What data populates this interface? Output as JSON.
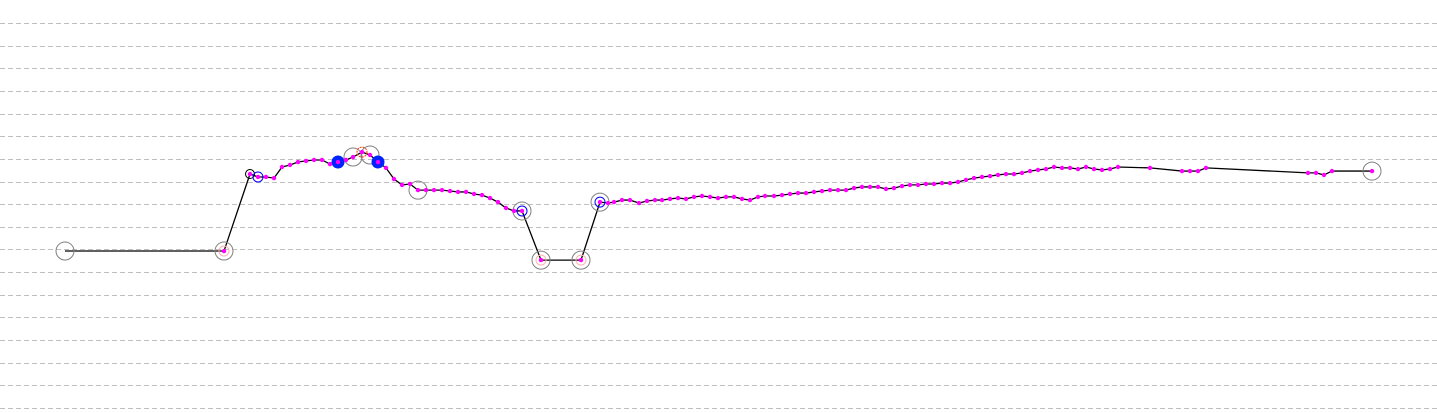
{
  "chart_data": {
    "type": "line",
    "title": "",
    "xlabel": "",
    "ylabel": "",
    "grid": true,
    "grid_style": "dashed horizontal",
    "xlim": [
      0,
      143.7
    ],
    "ylim": [
      0,
      17
    ],
    "colors": {
      "line": "#000000",
      "point": "#ff00ff",
      "grid": "#c0c0c0",
      "ring_gray": "#808080",
      "ring_blue": "#0000ff",
      "ring_red": "#ff3300",
      "ring_pink": "#ffb0b0",
      "ring_black": "#000000",
      "filled_blue": "#0022ff"
    },
    "series": [
      {
        "points": [
          [
            6.5,
            6.93
          ],
          [
            22.4,
            6.93
          ],
          [
            25.0,
            10.33
          ],
          [
            25.8,
            10.2
          ],
          [
            26.6,
            10.2
          ],
          [
            27.4,
            10.15
          ],
          [
            28.2,
            10.64
          ],
          [
            29.0,
            10.73
          ],
          [
            29.8,
            10.86
          ],
          [
            30.6,
            10.91
          ],
          [
            31.4,
            10.95
          ],
          [
            32.2,
            10.95
          ],
          [
            33.0,
            10.77
          ],
          [
            33.8,
            10.86
          ],
          [
            34.6,
            10.95
          ],
          [
            35.3,
            11.08
          ],
          [
            36.2,
            11.3
          ],
          [
            37.0,
            11.17
          ],
          [
            37.8,
            10.86
          ],
          [
            38.6,
            10.6
          ],
          [
            39.4,
            10.11
          ],
          [
            40.2,
            9.85
          ],
          [
            41.0,
            9.89
          ],
          [
            41.8,
            9.62
          ],
          [
            42.6,
            9.62
          ],
          [
            43.4,
            9.62
          ],
          [
            44.2,
            9.62
          ],
          [
            45.0,
            9.58
          ],
          [
            45.8,
            9.54
          ],
          [
            46.6,
            9.54
          ],
          [
            47.4,
            9.45
          ],
          [
            48.2,
            9.4
          ],
          [
            49.0,
            9.27
          ],
          [
            49.8,
            9.09
          ],
          [
            50.6,
            8.83
          ],
          [
            51.4,
            8.7
          ],
          [
            52.2,
            8.7
          ],
          [
            54.1,
            6.53
          ],
          [
            58.1,
            6.53
          ],
          [
            60.0,
            9.09
          ],
          [
            60.8,
            9.05
          ],
          [
            61.4,
            9.09
          ],
          [
            62.2,
            9.18
          ],
          [
            63.0,
            9.18
          ],
          [
            63.9,
            9.05
          ],
          [
            64.7,
            9.14
          ],
          [
            65.5,
            9.18
          ],
          [
            66.2,
            9.18
          ],
          [
            67.0,
            9.23
          ],
          [
            67.8,
            9.27
          ],
          [
            68.6,
            9.23
          ],
          [
            69.4,
            9.32
          ],
          [
            70.2,
            9.36
          ],
          [
            71.0,
            9.32
          ],
          [
            71.8,
            9.27
          ],
          [
            72.6,
            9.32
          ],
          [
            73.4,
            9.32
          ],
          [
            74.2,
            9.23
          ],
          [
            75.0,
            9.18
          ],
          [
            75.8,
            9.32
          ],
          [
            76.5,
            9.36
          ],
          [
            77.4,
            9.36
          ],
          [
            78.2,
            9.4
          ],
          [
            79.0,
            9.45
          ],
          [
            79.8,
            9.49
          ],
          [
            80.6,
            9.49
          ],
          [
            81.4,
            9.54
          ],
          [
            82.2,
            9.58
          ],
          [
            83.0,
            9.62
          ],
          [
            83.8,
            9.62
          ],
          [
            84.6,
            9.62
          ],
          [
            85.4,
            9.71
          ],
          [
            86.2,
            9.76
          ],
          [
            87.0,
            9.76
          ],
          [
            87.8,
            9.76
          ],
          [
            88.6,
            9.67
          ],
          [
            89.4,
            9.71
          ],
          [
            90.2,
            9.8
          ],
          [
            91.0,
            9.85
          ],
          [
            91.8,
            9.85
          ],
          [
            92.6,
            9.89
          ],
          [
            93.4,
            9.89
          ],
          [
            94.2,
            9.93
          ],
          [
            95.0,
            9.93
          ],
          [
            95.8,
            9.98
          ],
          [
            96.6,
            10.07
          ],
          [
            97.4,
            10.15
          ],
          [
            98.2,
            10.2
          ],
          [
            99.0,
            10.24
          ],
          [
            99.8,
            10.29
          ],
          [
            100.6,
            10.33
          ],
          [
            101.4,
            10.33
          ],
          [
            102.2,
            10.38
          ],
          [
            103.0,
            10.46
          ],
          [
            103.8,
            10.51
          ],
          [
            104.6,
            10.55
          ],
          [
            105.4,
            10.64
          ],
          [
            106.2,
            10.6
          ],
          [
            107.0,
            10.6
          ],
          [
            107.8,
            10.55
          ],
          [
            108.6,
            10.64
          ],
          [
            109.4,
            10.55
          ],
          [
            110.2,
            10.51
          ],
          [
            111.0,
            10.55
          ],
          [
            111.8,
            10.64
          ],
          [
            115.0,
            10.6
          ],
          [
            118.2,
            10.46
          ],
          [
            119.0,
            10.46
          ],
          [
            119.8,
            10.46
          ],
          [
            120.6,
            10.6
          ],
          [
            130.8,
            10.38
          ],
          [
            131.6,
            10.38
          ],
          [
            132.4,
            10.29
          ],
          [
            133.2,
            10.46
          ],
          [
            137.2,
            10.46
          ]
        ]
      }
    ],
    "markers": [
      {
        "x": 6.5,
        "y": 6.93,
        "type": "ring_gray"
      },
      {
        "x": 22.4,
        "y": 6.93,
        "type": "ring_gray"
      },
      {
        "x": 22.4,
        "y": 6.93,
        "type": "ring_pink"
      },
      {
        "x": 25.0,
        "y": 10.33,
        "type": "ring_black"
      },
      {
        "x": 25.8,
        "y": 10.2,
        "type": "ring_blue"
      },
      {
        "x": 33.8,
        "y": 10.86,
        "type": "filled_blue"
      },
      {
        "x": 35.3,
        "y": 11.08,
        "type": "ring_gray"
      },
      {
        "x": 36.2,
        "y": 11.3,
        "type": "ring_red"
      },
      {
        "x": 37.0,
        "y": 11.17,
        "type": "ring_gray"
      },
      {
        "x": 37.8,
        "y": 10.86,
        "type": "filled_blue"
      },
      {
        "x": 41.8,
        "y": 9.62,
        "type": "ring_gray"
      },
      {
        "x": 52.2,
        "y": 8.7,
        "type": "ring_gray"
      },
      {
        "x": 52.2,
        "y": 8.7,
        "type": "ring_blue"
      },
      {
        "x": 54.1,
        "y": 6.53,
        "type": "ring_gray"
      },
      {
        "x": 54.1,
        "y": 6.53,
        "type": "ring_pink"
      },
      {
        "x": 58.1,
        "y": 6.53,
        "type": "ring_gray"
      },
      {
        "x": 58.1,
        "y": 6.53,
        "type": "ring_pink"
      },
      {
        "x": 60.0,
        "y": 9.09,
        "type": "ring_gray"
      },
      {
        "x": 60.0,
        "y": 9.09,
        "type": "ring_blue"
      },
      {
        "x": 137.2,
        "y": 10.46,
        "type": "ring_gray"
      }
    ]
  }
}
